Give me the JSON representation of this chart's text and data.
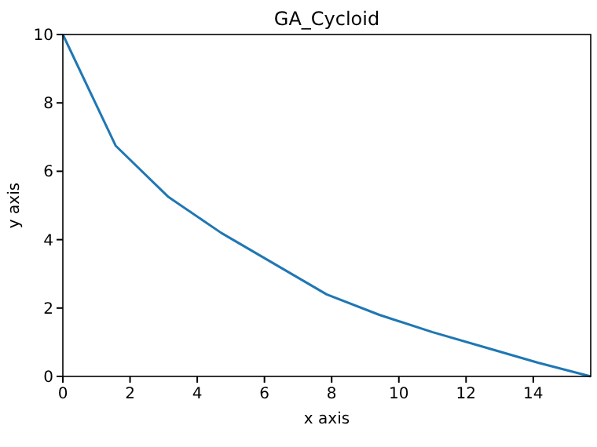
{
  "chart_data": {
    "type": "line",
    "title": "GA_Cycloid",
    "xlabel": "x axis",
    "ylabel": "y axis",
    "x": [
      0,
      1.57,
      3.14,
      4.71,
      6.28,
      7.85,
      9.42,
      10.99,
      12.57,
      14.14,
      15.71
    ],
    "series": [
      {
        "color": "#1f77b4",
        "values": [
          10,
          6.75,
          5.25,
          4.2,
          3.3,
          2.4,
          1.8,
          1.3,
          0.85,
          0.4,
          0
        ]
      }
    ],
    "xlim": [
      0,
      15.71
    ],
    "ylim": [
      0,
      10
    ],
    "xticks": [
      0,
      2,
      4,
      6,
      8,
      10,
      12,
      14
    ],
    "yticks": [
      0,
      2,
      4,
      6,
      8,
      10
    ],
    "grid": false,
    "marker": "none",
    "line_style": "solid"
  }
}
